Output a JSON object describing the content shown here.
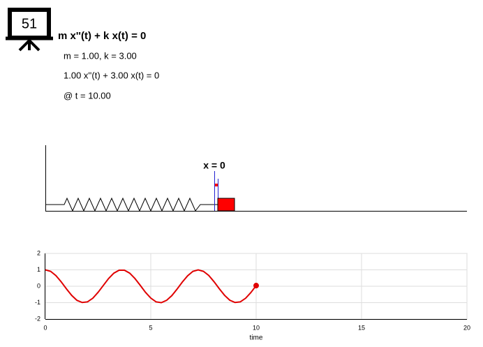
{
  "header": {
    "number": "51",
    "equation": "m x''(t) + k x(t) = 0",
    "params": "m = 1.00, k = 3.00",
    "ode": "1.00 x''(t) + 3.00 x(t) = 0",
    "time_label": "@ t = 10.00"
  },
  "spring_diagram": {
    "label": "x = 0"
  },
  "chart_data": {
    "type": "line",
    "xlabel": "time",
    "x": [
      0,
      0.25,
      0.5,
      0.75,
      1,
      1.25,
      1.5,
      1.75,
      2,
      2.25,
      2.5,
      2.75,
      3,
      3.25,
      3.5,
      3.75,
      4,
      4.25,
      4.5,
      4.75,
      5,
      5.25,
      5.5,
      5.75,
      6,
      6.25,
      6.5,
      6.75,
      7,
      7.25,
      7.5,
      7.75,
      8,
      8.25,
      8.5,
      8.75,
      9,
      9.25,
      9.5,
      9.75,
      10
    ],
    "series": [
      {
        "color": "#e00000",
        "values": [
          1,
          0.91,
          0.65,
          0.27,
          -0.16,
          -0.56,
          -0.86,
          -0.99,
          -0.95,
          -0.73,
          -0.37,
          0.05,
          0.47,
          0.8,
          0.98,
          0.98,
          0.8,
          0.47,
          0.06,
          -0.37,
          -0.72,
          -0.95,
          -1,
          -0.86,
          -0.57,
          -0.17,
          0.26,
          0.64,
          0.91,
          1,
          0.91,
          0.66,
          0.28,
          -0.15,
          -0.55,
          -0.85,
          -0.99,
          -0.95,
          -0.73,
          -0.38,
          0.04
        ]
      }
    ],
    "xlim": [
      0,
      20
    ],
    "ylim": [
      -2,
      2
    ],
    "xticks": [
      0,
      5,
      10,
      15,
      20
    ],
    "yticks": [
      -2,
      -1,
      0,
      1,
      2
    ],
    "grid": true
  }
}
